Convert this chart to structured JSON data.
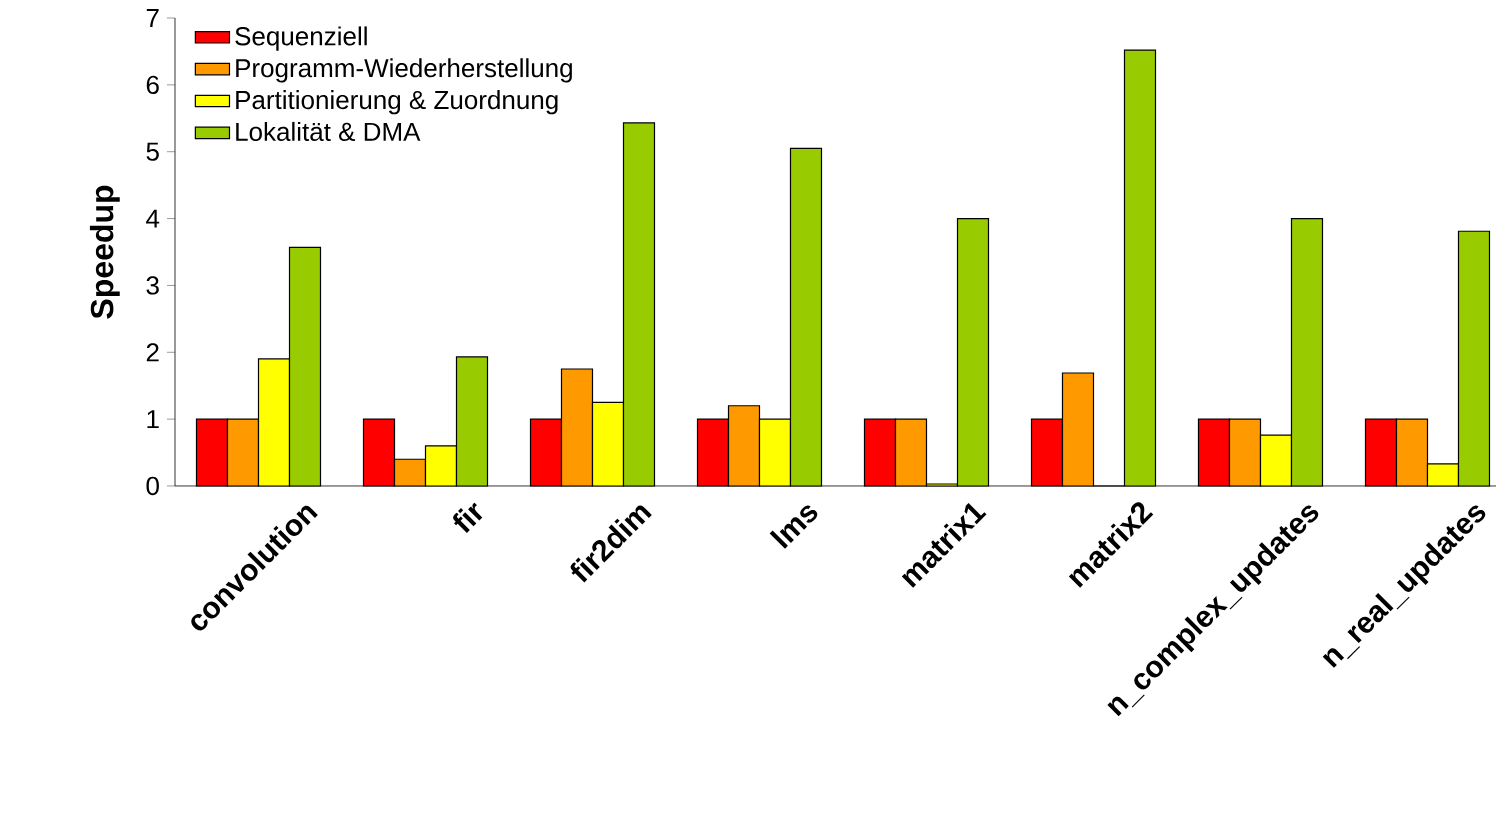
{
  "chart_data": {
    "type": "bar",
    "ylabel": "Speedup",
    "categories": [
      "convolution",
      "fir",
      "fir2dim",
      "lms",
      "matrix1",
      "matrix2",
      "n_complex_updates",
      "n_real_updates"
    ],
    "series": [
      {
        "name": "Sequenziell",
        "color": "#ff0000",
        "values": [
          1,
          1,
          1,
          1,
          1,
          1,
          1,
          1
        ]
      },
      {
        "name": "Programm-Wiederherstellung",
        "color": "#ff9900",
        "values": [
          1,
          0.4,
          1.75,
          1.2,
          1,
          1.69,
          1,
          1
        ]
      },
      {
        "name": "Partitionierung & Zuordnung",
        "color": "#ffff00",
        "values": [
          1.9,
          0.6,
          1.25,
          1,
          0.03,
          0,
          0.76,
          0.33
        ]
      },
      {
        "name": "Lokalität & DMA",
        "color": "#99cc00",
        "values": [
          3.57,
          1.93,
          5.43,
          5.05,
          4,
          6.52,
          4,
          3.81
        ]
      }
    ],
    "ylim": [
      0,
      7
    ],
    "yticks": [
      0,
      1,
      2,
      3,
      4,
      5,
      6,
      7
    ],
    "legend": "top left"
  }
}
